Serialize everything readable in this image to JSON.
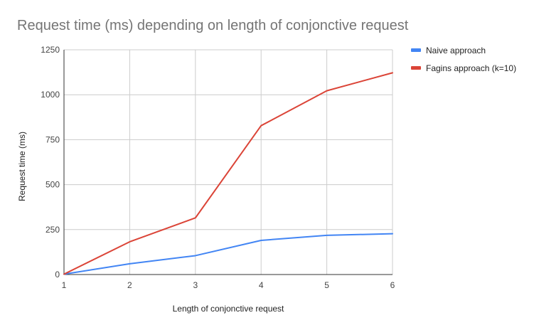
{
  "chart_data": {
    "type": "line",
    "title": "Request time (ms) depending on length of conjonctive request",
    "xlabel": "Length of conjonctive request",
    "ylabel": "Request time (ms)",
    "x": [
      1,
      2,
      3,
      4,
      5,
      6
    ],
    "xlim": [
      1,
      6
    ],
    "ylim": [
      0,
      1250
    ],
    "yticks": [
      0,
      250,
      500,
      750,
      1000,
      1250
    ],
    "grid": true,
    "legend_position": "right",
    "series": [
      {
        "name": "Naive approach",
        "color": "#4285f4",
        "values": [
          2,
          60,
          105,
          190,
          218,
          227
        ]
      },
      {
        "name": "Fagins approach (k=10)",
        "color": "#db4437",
        "values": [
          2,
          182,
          315,
          828,
          1022,
          1122
        ]
      }
    ]
  }
}
